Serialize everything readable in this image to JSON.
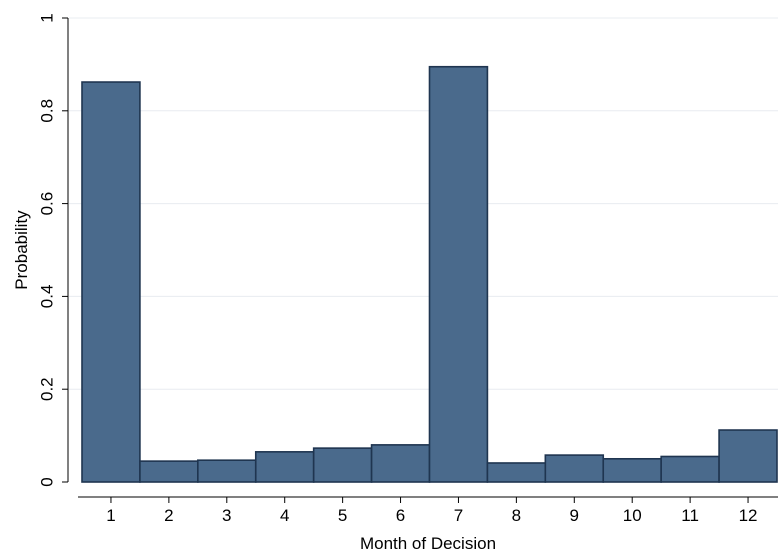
{
  "chart_data": {
    "type": "bar",
    "categories": [
      "1",
      "2",
      "3",
      "4",
      "5",
      "6",
      "7",
      "8",
      "9",
      "10",
      "11",
      "12"
    ],
    "values": [
      0.862,
      0.045,
      0.047,
      0.065,
      0.073,
      0.08,
      0.895,
      0.041,
      0.058,
      0.05,
      0.055,
      0.112
    ],
    "xlabel": "Month of Decision",
    "ylabel": "Probability",
    "ylim": [
      0,
      1
    ],
    "yticks": [
      "0",
      "0.2",
      "0.4",
      "0.6",
      "0.8",
      "1"
    ],
    "ytick_values": [
      0,
      0.2,
      0.4,
      0.6,
      0.8,
      1
    ],
    "grid": true,
    "bar_color": "#4a6a8c",
    "bar_edge_color": "#1f3550",
    "grid_color": "#e8ecf0"
  }
}
